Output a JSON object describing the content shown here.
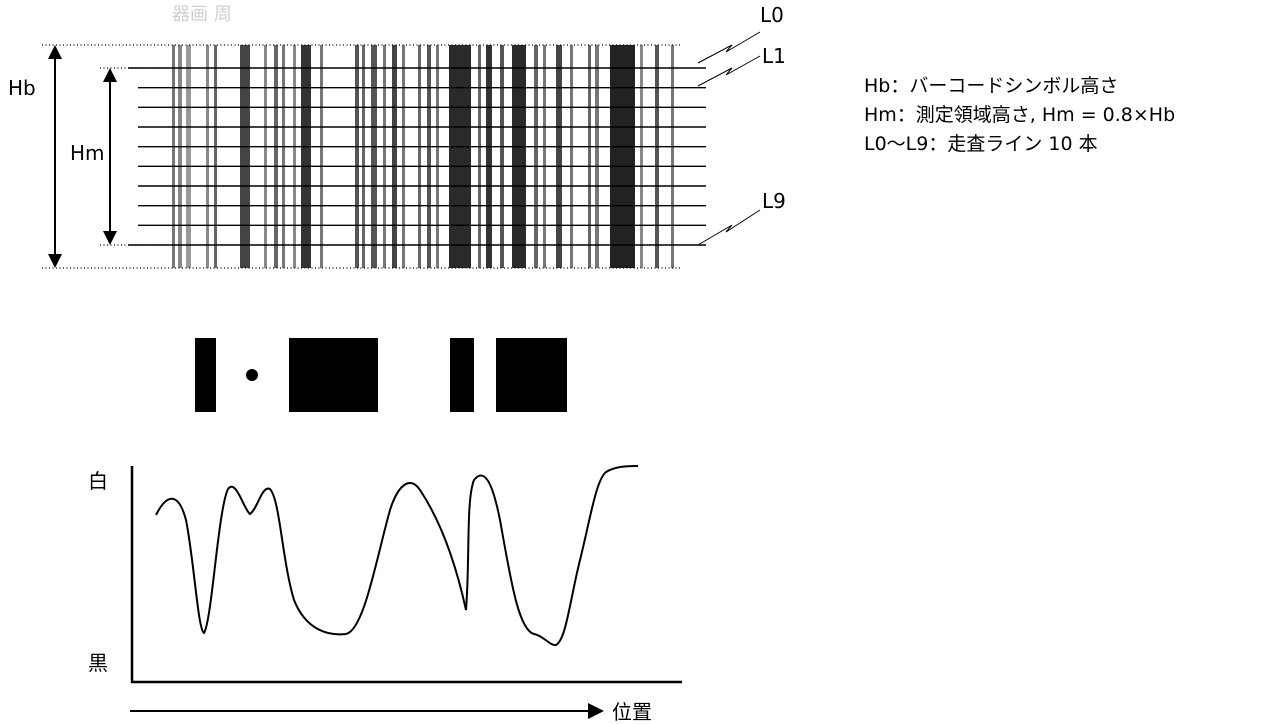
{
  "barcode_diagram": {
    "top_faint_text": "器画 周",
    "labels": {
      "hb": "Hb",
      "hm": "Hm",
      "l0": "L0",
      "l1": "L1",
      "l9": "L9"
    },
    "scan_line_count": 10
  },
  "legend": [
    "Hb：バーコードシンボル高さ",
    "Hm：測定領域高さ, Hm = 0.8×Hb",
    "L0〜L9：走査ライン 10 本"
  ],
  "reflectance_profile": {
    "y_top_label": "白",
    "y_bottom_label": "黒",
    "x_label": "位置"
  }
}
